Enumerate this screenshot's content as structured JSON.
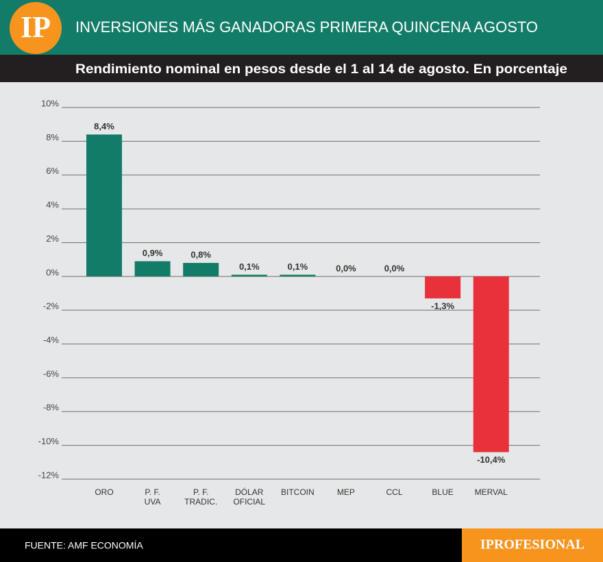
{
  "logo": "IP",
  "chart_data": {
    "type": "bar",
    "title": "INVERSIONES MÁS GANADORAS PRIMERA QUINCENA AGOSTO",
    "subtitle": "Rendimiento nominal en pesos desde el  1 al 14 de agosto. En porcentaje",
    "categories": [
      "ORO",
      "P. F.\nUVA",
      "P. F.\nTRADIC.",
      "DÓLAR\nOFICIAL",
      "BITCOIN",
      "MEP",
      "CCL",
      "BLUE",
      "MERVAL"
    ],
    "values": [
      8.4,
      0.9,
      0.8,
      0.1,
      0.1,
      0.0,
      0.0,
      -1.3,
      -10.4
    ],
    "value_labels": [
      "8,4%",
      "0,9%",
      "0,8%",
      "0,1%",
      "0,1%",
      "0,0%",
      "0,0%",
      "-1,3%",
      "-10,4%"
    ],
    "color_positive": "#137c69",
    "color_negative": "#e8313a",
    "ylim": [
      -12,
      10
    ],
    "yticks": [
      {
        "value": 10,
        "label": "10%"
      },
      {
        "value": 8,
        "label": "8%"
      },
      {
        "value": 6,
        "label": "6%"
      },
      {
        "value": 4,
        "label": "4%"
      },
      {
        "value": 2,
        "label": "2%"
      },
      {
        "value": 0,
        "label": "0%"
      },
      {
        "value": -2,
        "label": "-2%"
      },
      {
        "value": -4,
        "label": "-4%"
      },
      {
        "value": -6,
        "label": "-6%"
      },
      {
        "value": -8,
        "label": "-8%"
      },
      {
        "value": -10,
        "label": "-10%"
      },
      {
        "value": -12,
        "label": "-12%"
      }
    ],
    "grid": true
  },
  "footer": {
    "source": "FUENTE: AMF ECONOMÍA",
    "brand": "IPROFESIONAL"
  }
}
